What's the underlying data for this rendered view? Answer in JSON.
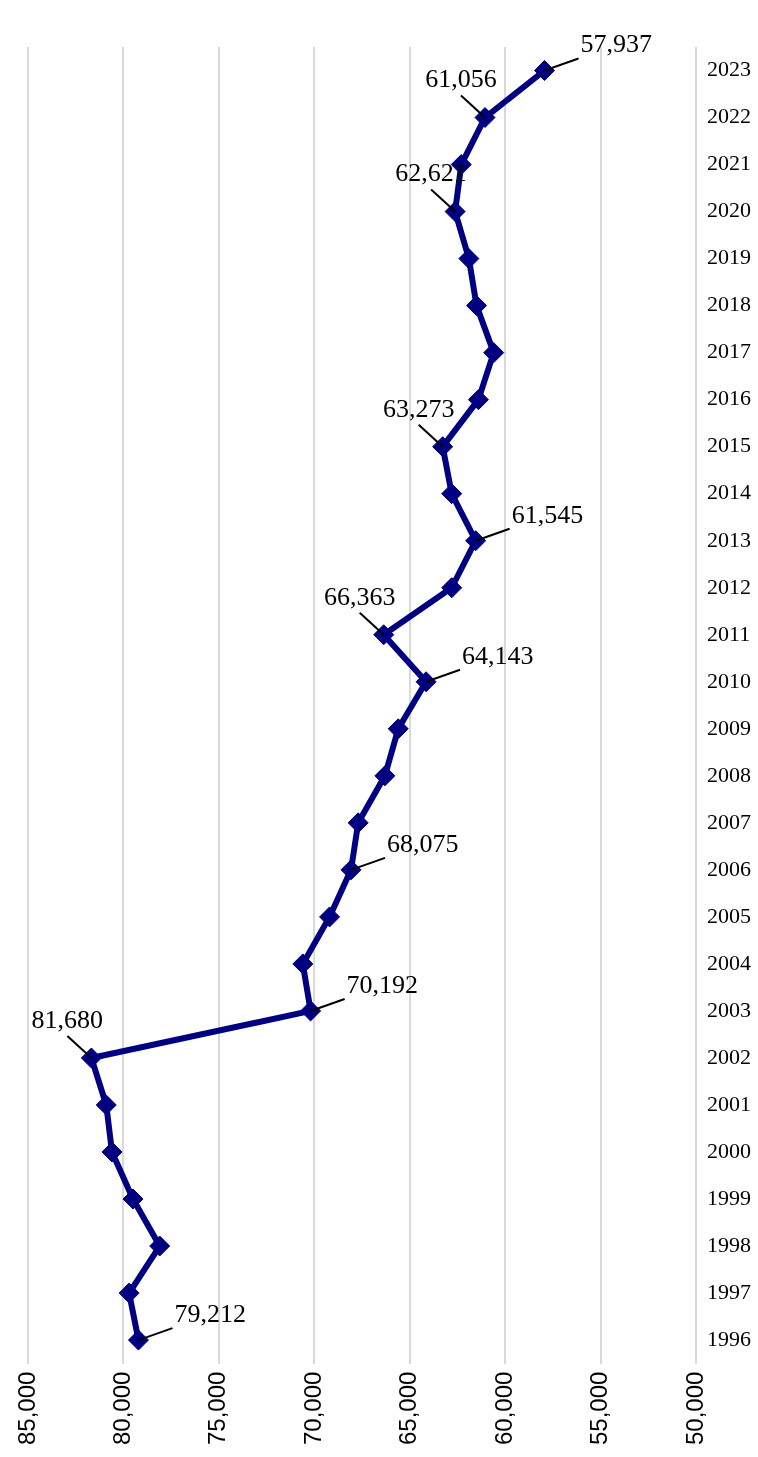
{
  "chart_data": {
    "type": "line",
    "orientation": "horizontal",
    "categories": [
      "2023",
      "2022",
      "2021",
      "2020",
      "2019",
      "2018",
      "2017",
      "2016",
      "2015",
      "2014",
      "2013",
      "2012",
      "2011",
      "2010",
      "2009",
      "2008",
      "2007",
      "2006",
      "2005",
      "2004",
      "2003",
      "2002",
      "2001",
      "2000",
      "1999",
      "1998",
      "1997",
      "1996"
    ],
    "values": [
      57937,
      61056,
      62300,
      62621,
      61900,
      61500,
      60600,
      61400,
      63273,
      62800,
      61545,
      62800,
      66363,
      64143,
      65600,
      66300,
      67700,
      68075,
      69200,
      70600,
      70192,
      81680,
      80900,
      80600,
      79500,
      78100,
      79700,
      79212
    ],
    "value_labels": [
      "57,937",
      "61,056",
      null,
      "62,621",
      null,
      null,
      null,
      null,
      "63,273",
      null,
      "61,545",
      null,
      "66,363",
      "64,143",
      null,
      null,
      null,
      "68,075",
      null,
      null,
      "70,192",
      "81,680",
      null,
      null,
      null,
      null,
      null,
      "79,212"
    ],
    "color": "#000080",
    "marker": "diamond",
    "line_style": "solid",
    "grid": "x",
    "legend": false,
    "xlim": [
      85000,
      50000
    ],
    "xticks": [
      {
        "value": 85000,
        "label": "85,000"
      },
      {
        "value": 80000,
        "label": "80,000"
      },
      {
        "value": 75000,
        "label": "75,000"
      },
      {
        "value": 70000,
        "label": "70,000"
      },
      {
        "value": 65000,
        "label": "65,000"
      },
      {
        "value": 60000,
        "label": "60,000"
      },
      {
        "value": 55000,
        "label": "55,000"
      },
      {
        "value": 50000,
        "label": "50,000"
      }
    ]
  }
}
